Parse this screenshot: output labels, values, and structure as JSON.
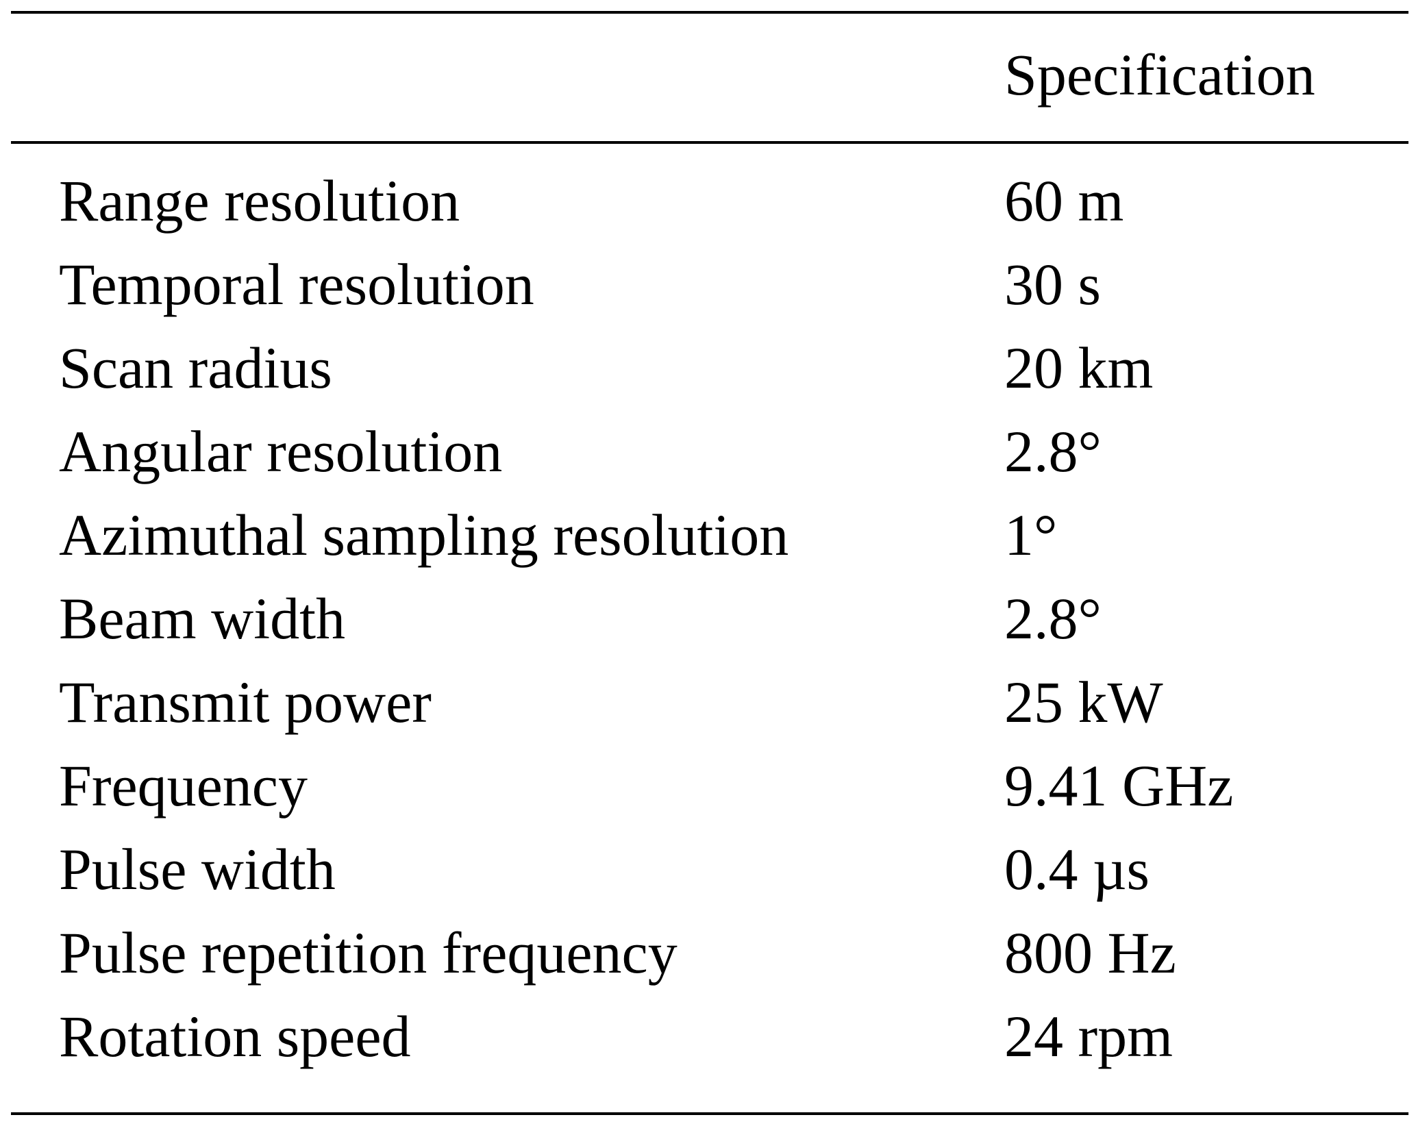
{
  "table": {
    "columns": [
      "",
      "Specification"
    ],
    "rows": [
      {
        "parameter": "Range resolution",
        "specification": "60 m"
      },
      {
        "parameter": "Temporal resolution",
        "specification": "30 s"
      },
      {
        "parameter": "Scan radius",
        "specification": "20 km"
      },
      {
        "parameter": "Angular resolution",
        "specification": "2.8°"
      },
      {
        "parameter": "Azimuthal sampling resolution",
        "specification": "1°"
      },
      {
        "parameter": "Beam width",
        "specification": "2.8°"
      },
      {
        "parameter": "Transmit power",
        "specification": "25 kW"
      },
      {
        "parameter": "Frequency",
        "specification": "9.41 GHz"
      },
      {
        "parameter": "Pulse width",
        "specification": "0.4 µs"
      },
      {
        "parameter": "Pulse repetition frequency",
        "specification": "800 Hz"
      },
      {
        "parameter": "Rotation speed",
        "specification": "24 rpm"
      }
    ]
  }
}
